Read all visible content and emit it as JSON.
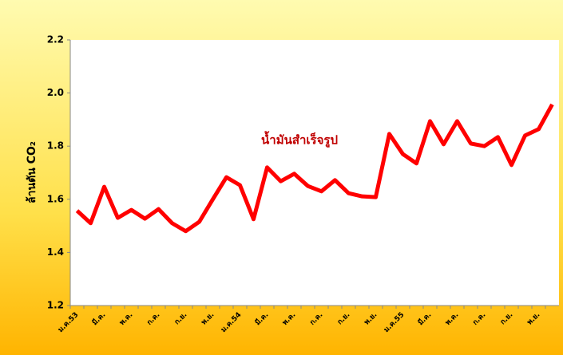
{
  "chart_data": {
    "type": "line",
    "y_label": "ล้านตัน CO₂",
    "annotation": "น้ำมันสำเร็จรูป",
    "categories": [
      "ม.ค.53",
      null,
      "มี.ค.",
      null,
      "พ.ค.",
      null,
      "ก.ค.",
      null,
      "ก.ย.",
      null,
      "พ.ย.",
      null,
      "ม.ค.54",
      null,
      "มี.ค.",
      null,
      "พ.ค.",
      null,
      "ก.ค.",
      null,
      "ก.ย.",
      null,
      "พ.ย.",
      null,
      "ม.ค.55",
      null,
      "มี.ค.",
      null,
      "พ.ค.",
      null,
      "ก.ค.",
      null,
      "ก.ย.",
      null,
      "พ.ย.",
      null
    ],
    "series": [
      {
        "name": "น้ำมันสำเร็จรูป",
        "color": "#ff0000",
        "values": [
          1.557,
          1.51,
          1.647,
          1.53,
          1.56,
          1.527,
          1.563,
          1.51,
          1.48,
          1.515,
          1.6,
          1.683,
          1.653,
          1.525,
          1.72,
          1.668,
          1.696,
          1.65,
          1.63,
          1.672,
          1.623,
          1.611,
          1.608,
          1.846,
          1.77,
          1.735,
          1.894,
          1.807,
          1.894,
          1.81,
          1.8,
          1.834,
          1.729,
          1.84,
          1.864,
          1.957
        ]
      }
    ],
    "ylim": [
      1.2,
      2.2
    ],
    "yticks": [
      {
        "value": 1.2,
        "label": "1.2"
      },
      {
        "value": 1.4,
        "label": "1.4"
      },
      {
        "value": 1.6,
        "label": "1.6"
      },
      {
        "value": 1.8,
        "label": "1.8"
      },
      {
        "value": 2.0,
        "label": "2.0"
      },
      {
        "value": 2.2,
        "label": "2.2"
      }
    ],
    "grid": false
  }
}
